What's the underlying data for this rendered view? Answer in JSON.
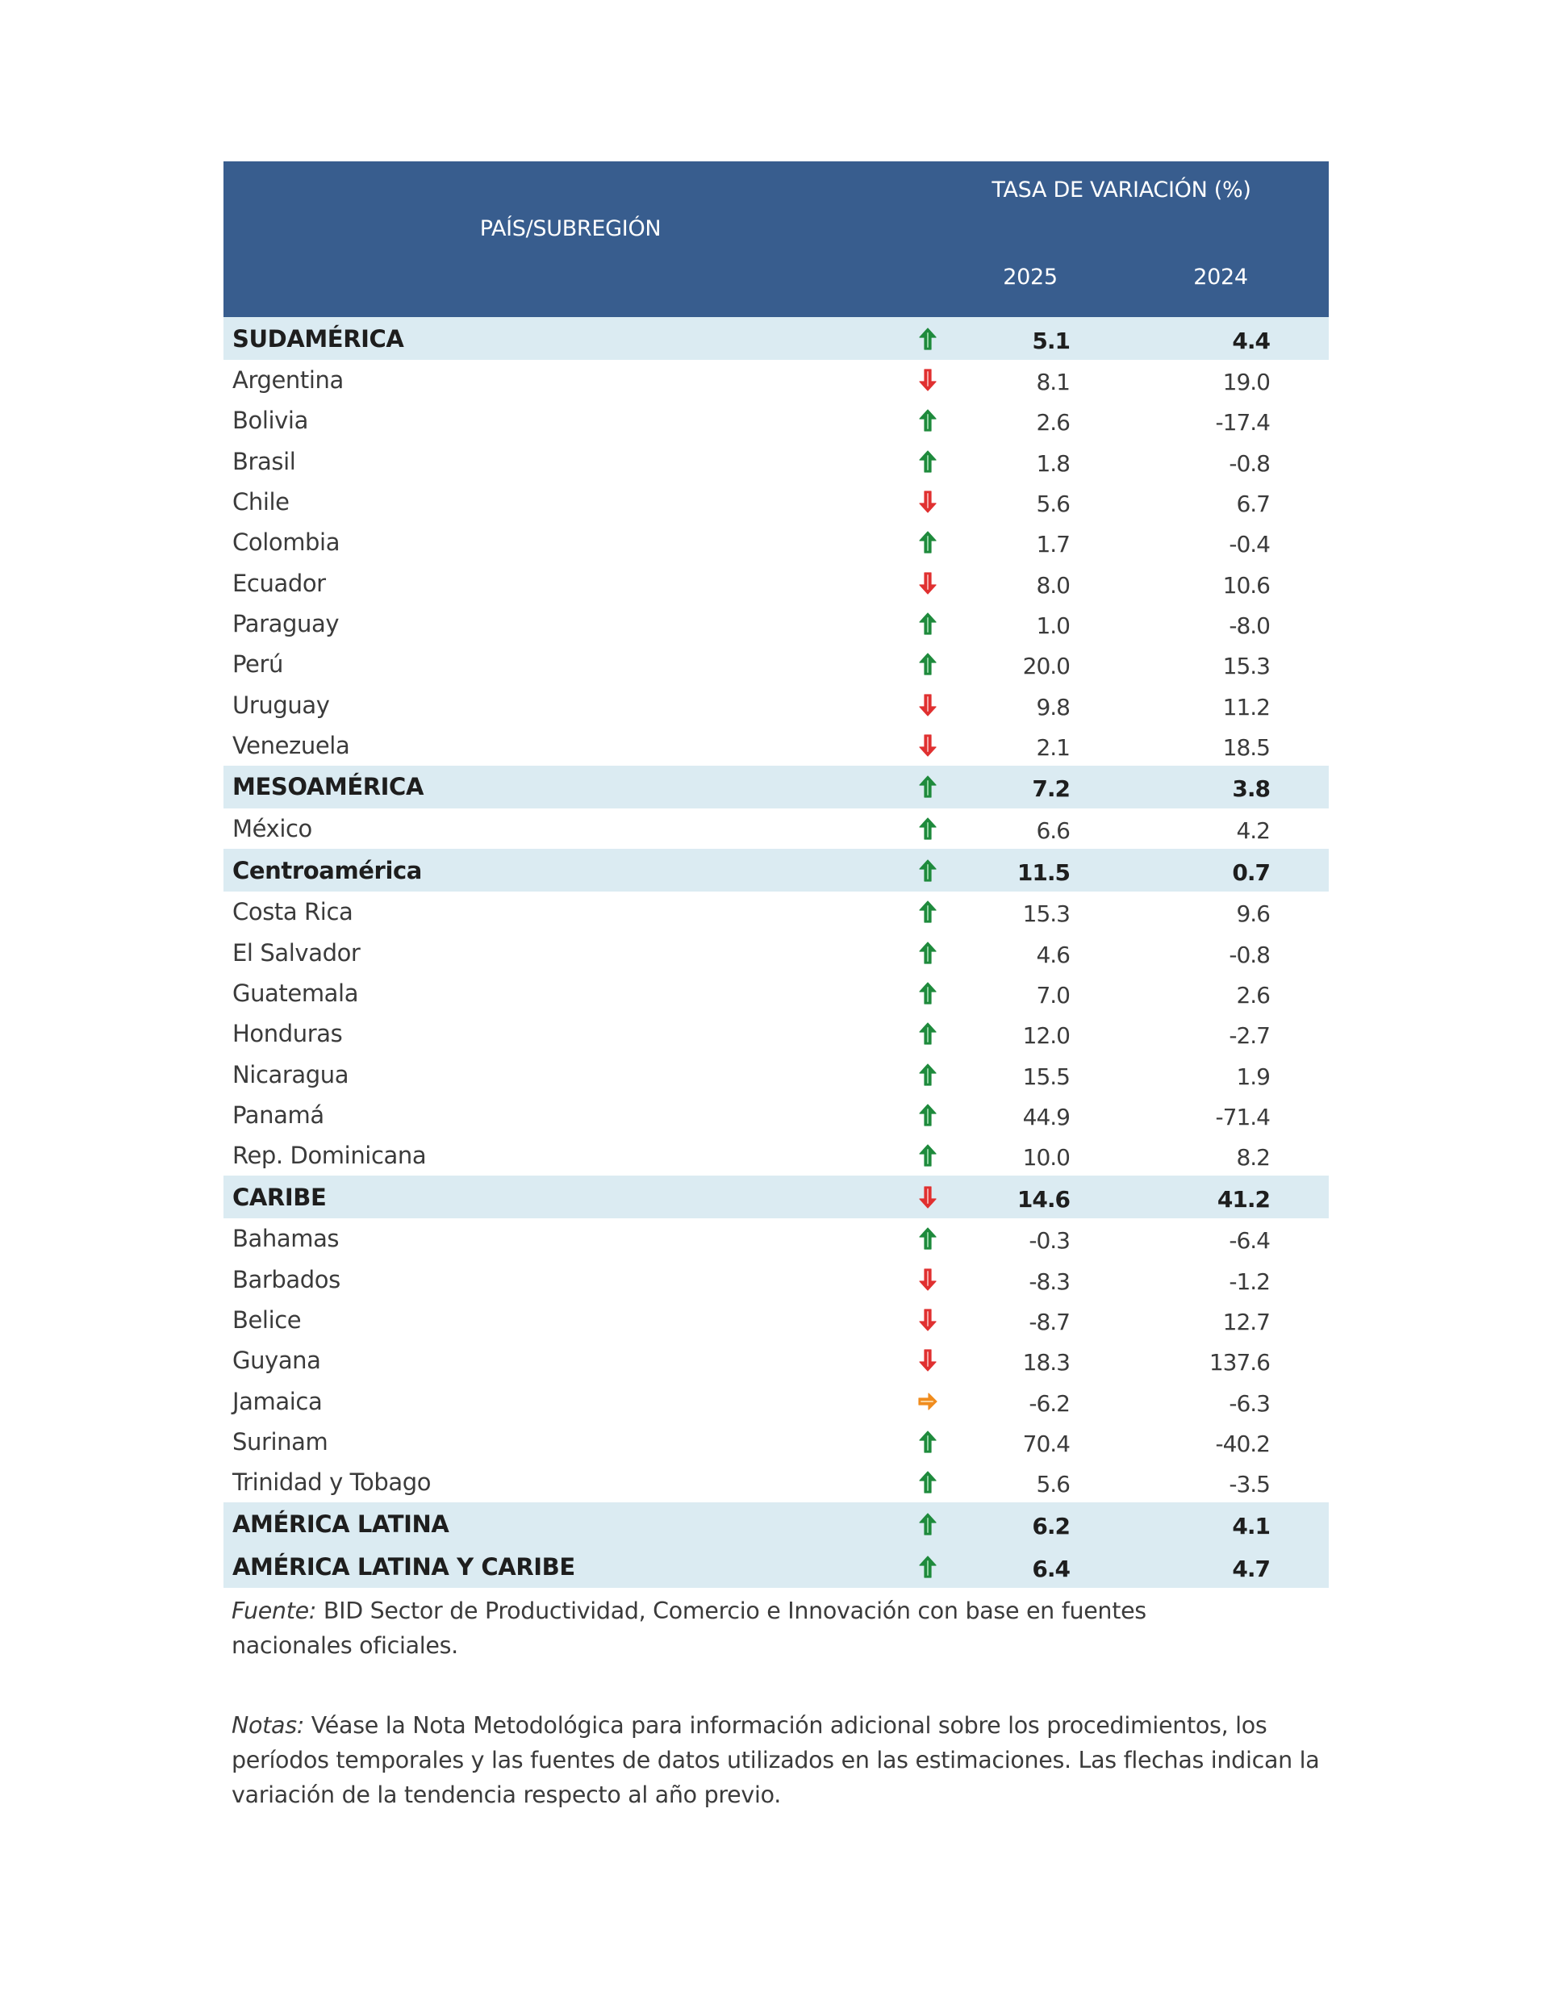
{
  "colors": {
    "header_bg": "#385d8e",
    "band_bg": "#dbebf2",
    "arrow_up": "#1e8a3c",
    "arrow_down": "#e03030",
    "arrow_flat": "#f08c1e"
  },
  "header": {
    "country_col": "PAÍS/SUBREGIÓN",
    "rate_col": "TASA DE VARIACIÓN (%)",
    "year_2025": "2025",
    "year_2024": "2024"
  },
  "rows": [
    {
      "label": "SUDAMÉRICA",
      "type": "band",
      "trend": "up",
      "v2025": "5.1",
      "v2024": "4.4"
    },
    {
      "label": "Argentina",
      "type": "country",
      "trend": "down",
      "v2025": "8.1",
      "v2024": "19.0"
    },
    {
      "label": "Bolivia",
      "type": "country",
      "trend": "up",
      "v2025": "2.6",
      "v2024": "-17.4"
    },
    {
      "label": "Brasil",
      "type": "country",
      "trend": "up",
      "v2025": "1.8",
      "v2024": "-0.8"
    },
    {
      "label": "Chile",
      "type": "country",
      "trend": "down",
      "v2025": "5.6",
      "v2024": "6.7"
    },
    {
      "label": "Colombia",
      "type": "country",
      "trend": "up",
      "v2025": "1.7",
      "v2024": "-0.4"
    },
    {
      "label": "Ecuador",
      "type": "country",
      "trend": "down",
      "v2025": "8.0",
      "v2024": "10.6"
    },
    {
      "label": "Paraguay",
      "type": "country",
      "trend": "up",
      "v2025": "1.0",
      "v2024": "-8.0"
    },
    {
      "label": "Perú",
      "type": "country",
      "trend": "up",
      "v2025": "20.0",
      "v2024": "15.3"
    },
    {
      "label": "Uruguay",
      "type": "country",
      "trend": "down",
      "v2025": "9.8",
      "v2024": "11.2"
    },
    {
      "label": "Venezuela",
      "type": "country",
      "trend": "down",
      "v2025": "2.1",
      "v2024": "18.5"
    },
    {
      "label": "MESOAMÉRICA",
      "type": "band",
      "trend": "up",
      "v2025": "7.2",
      "v2024": "3.8"
    },
    {
      "label": "México",
      "type": "country",
      "trend": "up",
      "v2025": "6.6",
      "v2024": "4.2"
    },
    {
      "label": "Centroamérica",
      "type": "band",
      "trend": "up",
      "v2025": "11.5",
      "v2024": "0.7"
    },
    {
      "label": "Costa Rica",
      "type": "country",
      "trend": "up",
      "v2025": "15.3",
      "v2024": "9.6"
    },
    {
      "label": "El Salvador",
      "type": "country",
      "trend": "up",
      "v2025": "4.6",
      "v2024": "-0.8"
    },
    {
      "label": "Guatemala",
      "type": "country",
      "trend": "up",
      "v2025": "7.0",
      "v2024": "2.6"
    },
    {
      "label": "Honduras",
      "type": "country",
      "trend": "up",
      "v2025": "12.0",
      "v2024": "-2.7"
    },
    {
      "label": "Nicaragua",
      "type": "country",
      "trend": "up",
      "v2025": "15.5",
      "v2024": "1.9"
    },
    {
      "label": "Panamá",
      "type": "country",
      "trend": "up",
      "v2025": "44.9",
      "v2024": "-71.4"
    },
    {
      "label": "Rep. Dominicana",
      "type": "country",
      "trend": "up",
      "v2025": "10.0",
      "v2024": "8.2"
    },
    {
      "label": "CARIBE",
      "type": "band",
      "trend": "down",
      "v2025": "14.6",
      "v2024": "41.2"
    },
    {
      "label": "Bahamas",
      "type": "country",
      "trend": "up",
      "v2025": "-0.3",
      "v2024": "-6.4"
    },
    {
      "label": "Barbados",
      "type": "country",
      "trend": "down",
      "v2025": "-8.3",
      "v2024": "-1.2"
    },
    {
      "label": "Belice",
      "type": "country",
      "trend": "down",
      "v2025": "-8.7",
      "v2024": "12.7"
    },
    {
      "label": "Guyana",
      "type": "country",
      "trend": "down",
      "v2025": "18.3",
      "v2024": "137.6"
    },
    {
      "label": "Jamaica",
      "type": "country",
      "trend": "flat",
      "v2025": "-6.2",
      "v2024": "-6.3"
    },
    {
      "label": "Surinam",
      "type": "country",
      "trend": "up",
      "v2025": "70.4",
      "v2024": "-40.2"
    },
    {
      "label": "Trinidad y Tobago",
      "type": "country",
      "trend": "up",
      "v2025": "5.6",
      "v2024": "-3.5"
    },
    {
      "label": "AMÉRICA LATINA",
      "type": "band",
      "trend": "up",
      "v2025": "6.2",
      "v2024": "4.1"
    },
    {
      "label": "AMÉRICA LATINA Y CARIBE",
      "type": "band",
      "trend": "up",
      "v2025": "6.4",
      "v2024": "4.7"
    }
  ],
  "footer": {
    "fuente_label": "Fuente:",
    "fuente_text": " BID Sector de Productividad, Comercio e Innovación con base en fuentes nacionales oficiales.",
    "notas_label": "Notas:",
    "notas_text": " Véase la Nota Metodológica para información adicional sobre los procedimientos, los períodos temporales y las fuentes de datos utilizados en las estimaciones. Las flechas indican la variación de la tendencia respecto al año previo."
  }
}
